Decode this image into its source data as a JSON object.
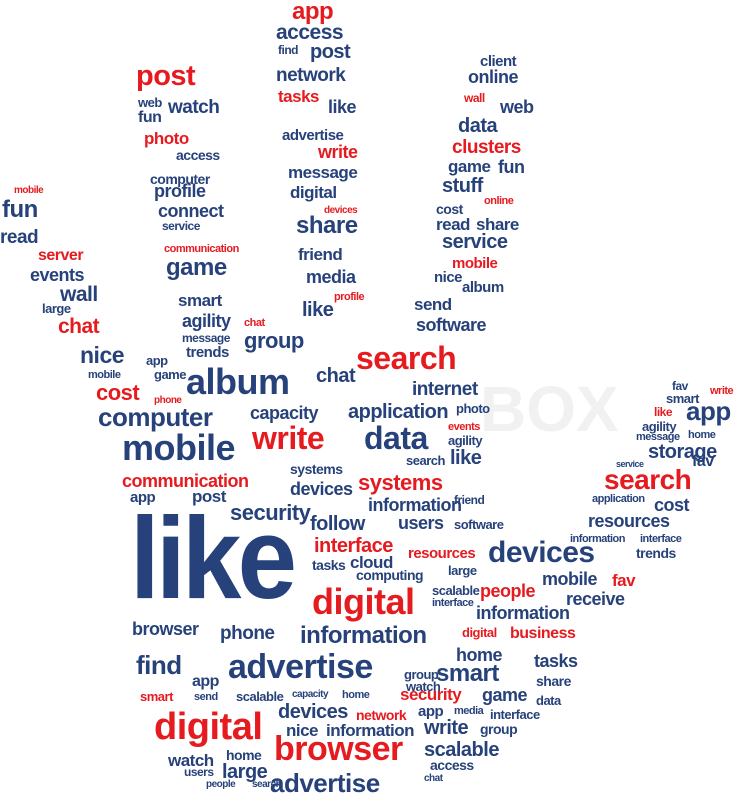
{
  "colors": {
    "blue": "#27427a",
    "red": "#e51b20",
    "background": "#ffffff"
  },
  "watermark": "BOX",
  "words": {
    "app": "app",
    "access": "access",
    "find": "find",
    "post": "post",
    "network": "network",
    "tasks": "tasks",
    "like": "like",
    "advertise": "advertise",
    "write": "write",
    "digital": "digital",
    "share": "share",
    "friend": "friend",
    "media": "media",
    "profile": "profile",
    "client": "client",
    "online": "online",
    "wall": "wall",
    "web": "web",
    "data": "data",
    "clusters": "clusters",
    "game": "game",
    "fun": "fun",
    "stuff": "stuff",
    "receive": "receive",
    "cost": "cost",
    "connect": "connect",
    "read": "read",
    "service": "service",
    "mobile": "mobile",
    "album": "album",
    "send": "send",
    "software": "software",
    "watch": "watch",
    "photo": "photo",
    "computer": "computer",
    "communication": "communication",
    "smart": "smart",
    "chat": "chat",
    "agility": "agility",
    "message": "message",
    "trends": "trends",
    "group": "group",
    "search": "search",
    "server": "server",
    "events": "events",
    "large": "large",
    "nice": "nice",
    "capacity": "capacity",
    "internet": "internet",
    "application": "application",
    "systems": "systems",
    "security": "security",
    "devices": "devices",
    "storage": "storage",
    "users": "users",
    "follow": "follow",
    "interface": "interface",
    "resources": "resources",
    "cloud": "cloud",
    "computing": "computing",
    "scalable": "scalable",
    "information": "information",
    "people": "people",
    "business": "business",
    "home": "home",
    "browser": "browser",
    "phone": "phone",
    "fav": "fav"
  }
}
